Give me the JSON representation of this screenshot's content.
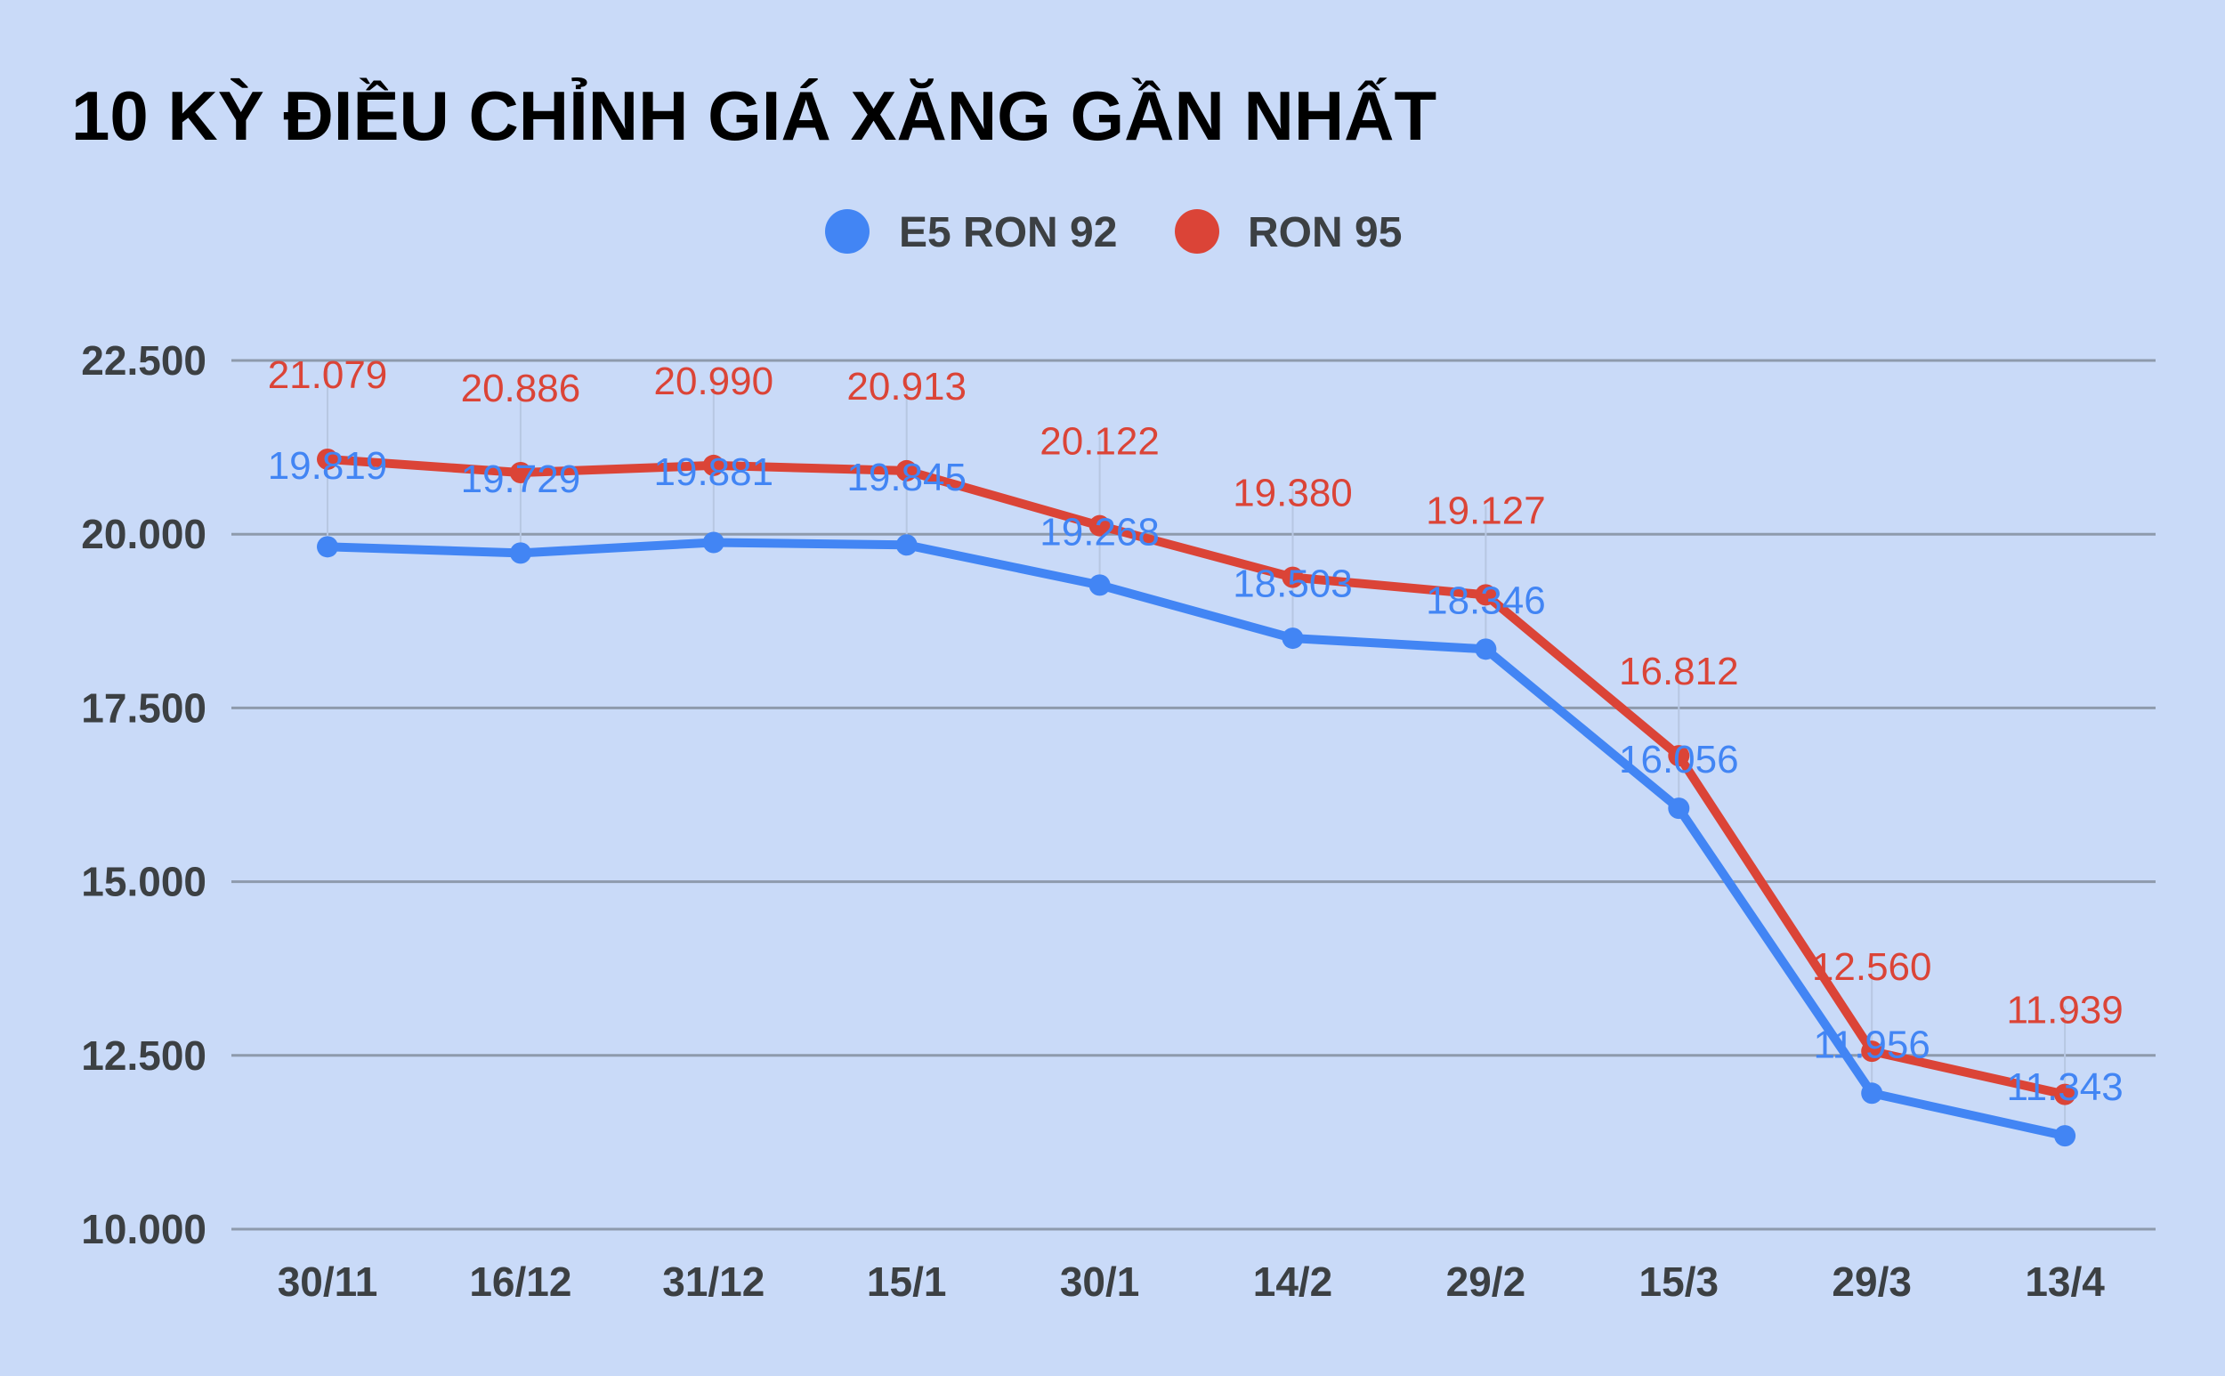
{
  "chart_data": {
    "type": "line",
    "title": "10 KỲ ĐIỀU CHỈNH GIÁ XĂNG GẦN NHẤT",
    "categories": [
      "30/11",
      "16/12",
      "31/12",
      "15/1",
      "30/1",
      "14/2",
      "29/2",
      "15/3",
      "29/3",
      "13/4"
    ],
    "series": [
      {
        "name": "E5 RON 92",
        "color": "#4285f4",
        "values": [
          19819,
          19729,
          19881,
          19845,
          19268,
          18503,
          18346,
          16056,
          11956,
          11343
        ],
        "labels": [
          "19.819",
          "19.729",
          "19.881",
          "19.845",
          "19.268",
          "18.503",
          "18.346",
          "16.056",
          "11.956",
          "11.343"
        ]
      },
      {
        "name": "RON 95",
        "color": "#db4437",
        "values": [
          21079,
          20886,
          20990,
          20913,
          20122,
          19380,
          19127,
          16812,
          12560,
          11939
        ],
        "labels": [
          "21.079",
          "20.886",
          "20.990",
          "20.913",
          "20.122",
          "19.380",
          "19.127",
          "16.812",
          "12.560",
          "11.939"
        ]
      }
    ],
    "ylim": [
      10000,
      22500
    ],
    "yticks": [
      10000,
      12500,
      15000,
      17500,
      20000,
      22500
    ],
    "ytick_labels": [
      "10.000",
      "12.500",
      "15.000",
      "17.500",
      "20.000",
      "22.500"
    ],
    "xlabel": "",
    "ylabel": "",
    "grid": true,
    "legend": "top-center"
  }
}
